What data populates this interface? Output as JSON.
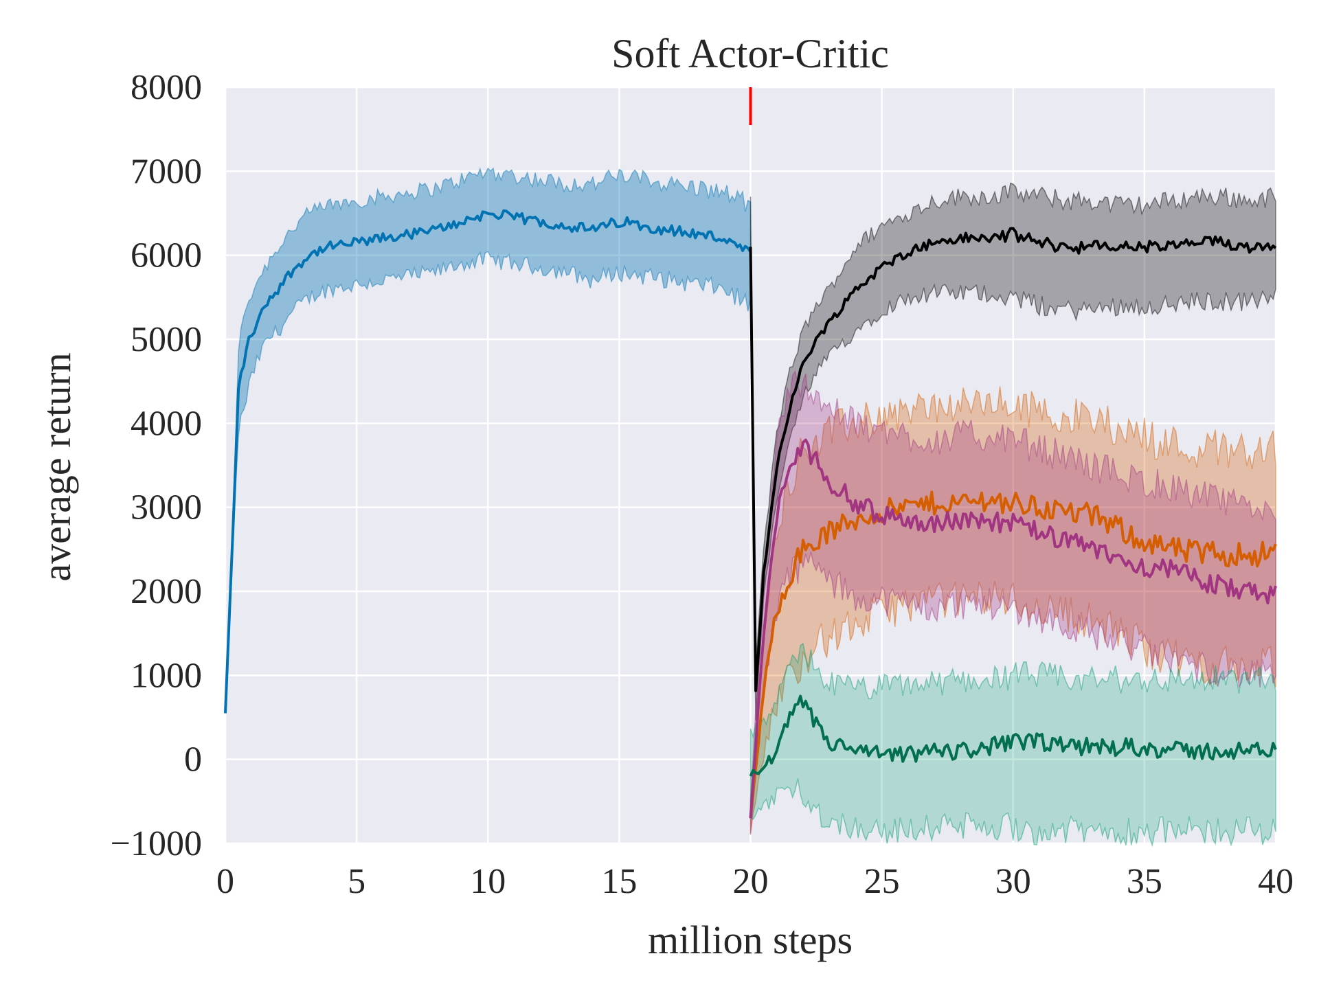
{
  "chart_data": {
    "type": "line",
    "title": "Soft Actor-Critic",
    "xlabel": "million steps",
    "ylabel": "average return",
    "xlim": [
      0,
      40
    ],
    "ylim": [
      -1000,
      8000
    ],
    "xticks": [
      0,
      5,
      10,
      15,
      20,
      25,
      30,
      35,
      40
    ],
    "yticks": [
      -1000,
      0,
      1000,
      2000,
      3000,
      4000,
      5000,
      6000,
      7000,
      8000
    ],
    "xtick_labels": [
      "0",
      "5",
      "10",
      "15",
      "20",
      "25",
      "30",
      "35",
      "40"
    ],
    "ytick_labels": [
      "−1000",
      "0",
      "1000",
      "2000",
      "3000",
      "4000",
      "5000",
      "6000",
      "7000",
      "8000"
    ],
    "grid": true,
    "background": "#eaeaf2",
    "vertical_marker": {
      "x": 20,
      "y_range": [
        7550,
        8000
      ],
      "color": "#ff0000"
    },
    "series": [
      {
        "color": "#0173b2",
        "band": 0.38,
        "x": [
          0,
          0.3,
          0.5,
          0.8,
          1,
          1.3,
          1.6,
          2,
          2.5,
          3,
          3.5,
          4,
          5,
          6,
          7,
          8,
          9,
          10,
          11,
          12,
          13,
          14,
          15,
          16,
          17,
          18,
          19,
          20
        ],
        "y": [
          550,
          2800,
          4400,
          4900,
          5050,
          5250,
          5450,
          5600,
          5800,
          5950,
          6050,
          6100,
          6150,
          6200,
          6250,
          6300,
          6400,
          6500,
          6450,
          6400,
          6350,
          6300,
          6400,
          6350,
          6300,
          6250,
          6200,
          6000
        ],
        "lower": [
          550,
          2600,
          3900,
          4300,
          4550,
          4800,
          5000,
          5100,
          5300,
          5450,
          5550,
          5600,
          5650,
          5700,
          5750,
          5800,
          5900,
          5950,
          5900,
          5850,
          5800,
          5700,
          5800,
          5750,
          5700,
          5650,
          5600,
          5400
        ],
        "upper": [
          550,
          3000,
          4900,
          5400,
          5550,
          5750,
          5900,
          6100,
          6300,
          6450,
          6550,
          6600,
          6650,
          6700,
          6750,
          6800,
          6900,
          7000,
          6950,
          6900,
          6850,
          6850,
          6950,
          6900,
          6850,
          6800,
          6750,
          6600
        ]
      },
      {
        "color": "#000000",
        "band": 0.3,
        "x": [
          20,
          20.2,
          20.5,
          21,
          21.5,
          22,
          22.5,
          23,
          23.5,
          24,
          25,
          26,
          27,
          28,
          29,
          30,
          31,
          32,
          33,
          34,
          35,
          36,
          37,
          38,
          39,
          40
        ],
        "y": [
          6100,
          800,
          2200,
          3500,
          4200,
          4700,
          5000,
          5200,
          5400,
          5600,
          5850,
          6050,
          6150,
          6200,
          6200,
          6250,
          6150,
          6100,
          6100,
          6100,
          6100,
          6100,
          6150,
          6150,
          6100,
          6150
        ],
        "lower": [
          5400,
          500,
          1900,
          3100,
          3800,
          4300,
          4600,
          4800,
          4950,
          5100,
          5350,
          5500,
          5550,
          5550,
          5550,
          5500,
          5400,
          5350,
          5350,
          5400,
          5400,
          5400,
          5450,
          5450,
          5450,
          5500
        ],
        "upper": [
          6750,
          1100,
          2500,
          3900,
          4600,
          5100,
          5400,
          5600,
          5850,
          6100,
          6350,
          6500,
          6650,
          6700,
          6700,
          6750,
          6700,
          6650,
          6650,
          6600,
          6600,
          6650,
          6700,
          6700,
          6650,
          6700
        ]
      },
      {
        "color": "#d55e00",
        "band": 0.3,
        "x": [
          20,
          20.5,
          21,
          21.5,
          22,
          22.5,
          23,
          24,
          25,
          26,
          27,
          28,
          29,
          30,
          31,
          32,
          33,
          34,
          35,
          36,
          37,
          38,
          39,
          40
        ],
        "y": [
          -700,
          800,
          1800,
          2200,
          2500,
          2600,
          2700,
          2850,
          2950,
          3000,
          3050,
          3050,
          3100,
          3050,
          3000,
          2950,
          2900,
          2750,
          2600,
          2500,
          2450,
          2450,
          2450,
          2450
        ],
        "lower": [
          -900,
          100,
          700,
          1000,
          1200,
          1350,
          1450,
          1600,
          1750,
          1850,
          1900,
          1900,
          1950,
          1900,
          1800,
          1750,
          1650,
          1500,
          1350,
          1200,
          1150,
          1100,
          1100,
          1100
        ],
        "upper": [
          -500,
          1500,
          2800,
          3300,
          3700,
          3800,
          3900,
          4000,
          4100,
          4150,
          4200,
          4200,
          4250,
          4200,
          4150,
          4100,
          4050,
          3950,
          3850,
          3750,
          3700,
          3700,
          3700,
          3700
        ]
      },
      {
        "color": "#a23582",
        "band": 0.3,
        "x": [
          20,
          20.5,
          21,
          21.5,
          22,
          22.5,
          23,
          24,
          25,
          26,
          27,
          28,
          29,
          30,
          31,
          32,
          33,
          34,
          35,
          36,
          37,
          38,
          39,
          40
        ],
        "y": [
          -700,
          1500,
          2900,
          3500,
          3700,
          3600,
          3300,
          3050,
          2900,
          2850,
          2800,
          2850,
          2850,
          2800,
          2700,
          2600,
          2500,
          2400,
          2300,
          2250,
          2150,
          2050,
          2000,
          1950
        ],
        "lower": [
          -900,
          900,
          1800,
          2200,
          2350,
          2300,
          2100,
          1950,
          1900,
          1850,
          1800,
          1850,
          1850,
          1800,
          1700,
          1600,
          1500,
          1400,
          1300,
          1200,
          1100,
          1050,
          1000,
          1000
        ],
        "upper": [
          -500,
          2100,
          3900,
          4400,
          4500,
          4400,
          4150,
          4000,
          3900,
          3850,
          3800,
          3850,
          3850,
          3800,
          3700,
          3600,
          3500,
          3400,
          3300,
          3250,
          3150,
          3050,
          3000,
          3000
        ]
      },
      {
        "color": "#029e73",
        "stroke": "#027050",
        "band": 0.24,
        "x": [
          20,
          20.5,
          21,
          21.5,
          22,
          22.5,
          23,
          24,
          25,
          26,
          27,
          28,
          29,
          30,
          31,
          32,
          33,
          34,
          35,
          36,
          37,
          38,
          39,
          40
        ],
        "y": [
          -200,
          -100,
          100,
          500,
          700,
          400,
          200,
          100,
          50,
          50,
          100,
          100,
          150,
          200,
          200,
          150,
          150,
          150,
          150,
          100,
          100,
          100,
          100,
          100
        ],
        "lower": [
          -700,
          -600,
          -450,
          -300,
          -400,
          -600,
          -750,
          -800,
          -850,
          -850,
          -800,
          -800,
          -800,
          -800,
          -850,
          -850,
          -850,
          -850,
          -850,
          -850,
          -850,
          -850,
          -850,
          -850
        ],
        "upper": [
          300,
          400,
          700,
          1100,
          1300,
          1100,
          900,
          850,
          850,
          900,
          900,
          950,
          950,
          1000,
          1000,
          950,
          950,
          950,
          950,
          950,
          950,
          950,
          950,
          950
        ]
      }
    ]
  }
}
